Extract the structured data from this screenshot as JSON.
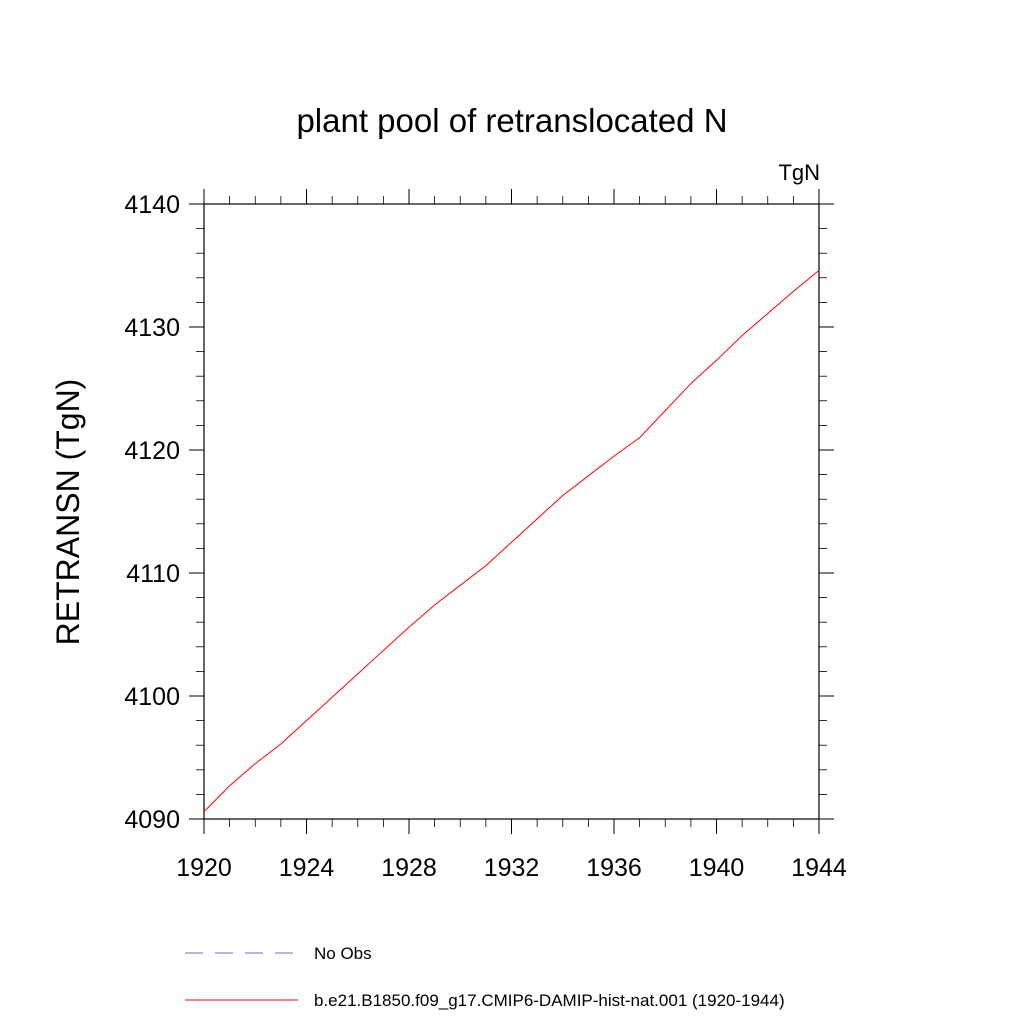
{
  "chart_data": {
    "type": "line",
    "title": "plant pool of retranslocated N",
    "units": "TgN",
    "xlabel": "",
    "ylabel": "RETRANSN  (TgN)",
    "xlim": [
      1920,
      1944
    ],
    "ylim": [
      4090,
      4140
    ],
    "x_ticks": [
      1920,
      1924,
      1928,
      1932,
      1936,
      1940,
      1944
    ],
    "x_tick_labels": [
      "1920",
      "1924",
      "1928",
      "1932",
      "1936",
      "1940",
      "1944"
    ],
    "y_ticks": [
      4090,
      4100,
      4110,
      4120,
      4130,
      4140
    ],
    "y_tick_labels": [
      "4090",
      "4100",
      "4110",
      "4120",
      "4130",
      "4140"
    ],
    "grid": false,
    "series": [
      {
        "name": "b.e21.B1850.f09_g17.CMIP6-DAMIP-hist-nat.001 (1920-1944)",
        "color": "#ff0000",
        "style": "solid",
        "x": [
          1920,
          1921,
          1922,
          1923,
          1924,
          1925,
          1926,
          1927,
          1928,
          1929,
          1930,
          1931,
          1932,
          1933,
          1934,
          1935,
          1936,
          1937,
          1938,
          1939,
          1940,
          1941,
          1942,
          1943,
          1944
        ],
        "y": [
          4090.6,
          4092.7,
          4094.5,
          4096.1,
          4098.0,
          4099.9,
          4101.8,
          4103.7,
          4105.6,
          4107.4,
          4109.0,
          4110.6,
          4112.5,
          4114.4,
          4116.3,
          4117.9,
          4119.5,
          4121.0,
          4123.2,
          4125.4,
          4127.3,
          4129.3,
          4131.1,
          4132.9,
          4134.6
        ]
      }
    ],
    "legend": [
      {
        "label": "No Obs",
        "color": "#6b6bd6",
        "style": "dashed"
      },
      {
        "label": "b.e21.B1850.f09_g17.CMIP6-DAMIP-hist-nat.001 (1920-1944)",
        "color": "#ff0000",
        "style": "solid"
      }
    ],
    "legend_position": "bottom"
  }
}
